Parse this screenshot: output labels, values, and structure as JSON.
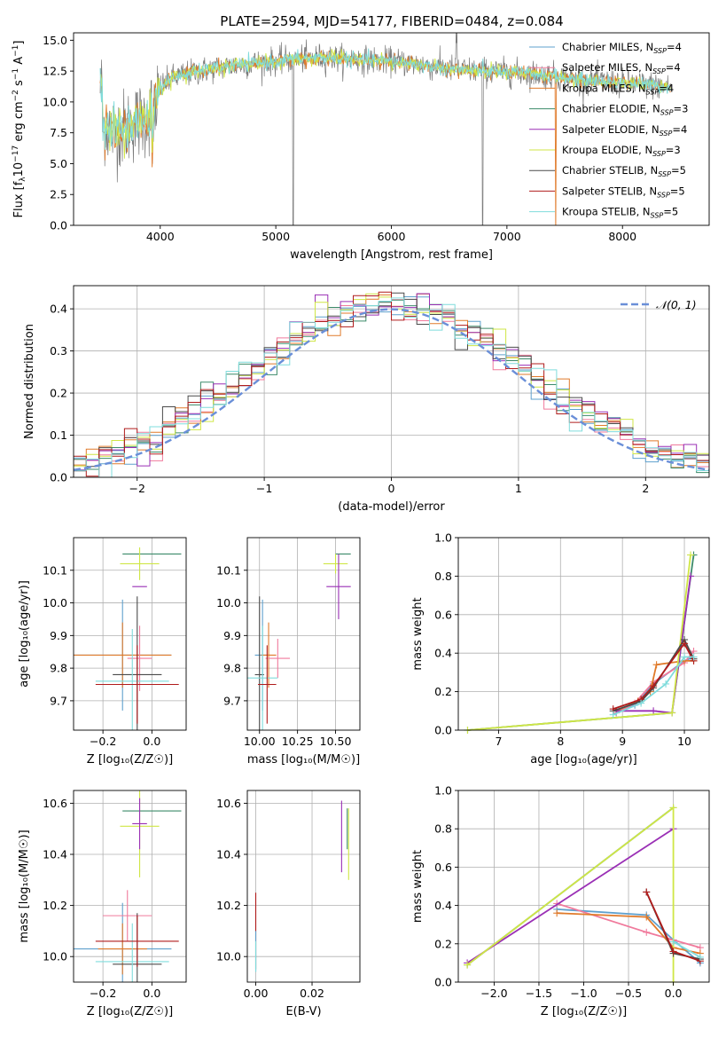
{
  "figure": {
    "title": "PLATE=2594, MJD=54177, FIBERID=0484, z=0.084"
  },
  "series_styles": [
    {
      "name": "Chabrier MILES",
      "nssp": "4",
      "color": "#5fa0cd"
    },
    {
      "name": "Salpeter MILES",
      "nssp": "4",
      "color": "#f07a9c"
    },
    {
      "name": "Kroupa MILES",
      "nssp": "4",
      "color": "#e07a2a"
    },
    {
      "name": "Chabrier ELODIE",
      "nssp": "3",
      "color": "#3c8b6a"
    },
    {
      "name": "Salpeter ELODIE",
      "nssp": "4",
      "color": "#9a2fb5"
    },
    {
      "name": "Kroupa ELODIE",
      "nssp": "3",
      "color": "#cfe645"
    },
    {
      "name": "Chabrier STELIB",
      "nssp": "5",
      "color": "#4a4a4a"
    },
    {
      "name": "Salpeter STELIB",
      "nssp": "5",
      "color": "#b01c1c"
    },
    {
      "name": "Kroupa STELIB",
      "nssp": "5",
      "color": "#7fdcdc"
    }
  ],
  "chart_data": [
    {
      "id": "spectrum",
      "type": "line",
      "xlabel": "wavelength [Angstrom, rest frame]",
      "ylabel_main": "Flux [f",
      "ylabel_sub": "λ",
      "ylabel_rest": "10",
      "ylabel_exp": "−17",
      "ylabel_tail": " erg cm",
      "ylabel_exp2": "−2",
      "ylabel_tail2": " s",
      "ylabel_exp3": "−1",
      "ylabel_tail3": " A",
      "ylabel_exp4": "−1",
      "ylabel_end": "]",
      "xlim": [
        3250,
        8750
      ],
      "ylim": [
        0,
        15.6
      ],
      "xticks": [
        4000,
        5000,
        6000,
        7000,
        8000
      ],
      "yticks": [
        0.0,
        2.5,
        5.0,
        7.5,
        10.0,
        12.5,
        15.0
      ],
      "ytick_labels": [
        "0.0",
        "2.5",
        "5.0",
        "7.5",
        "10.0",
        "12.5",
        "15.0"
      ],
      "grid": false,
      "legend_position": "upper right",
      "legend_nssp_prefix": "N",
      "legend_nssp_sub": "SSP",
      "continuum": {
        "x": [
          3500,
          3600,
          3700,
          3800,
          3900,
          4000,
          4100,
          4200,
          4300,
          4400,
          4600,
          4800,
          5000,
          5200,
          5400,
          5600,
          5800,
          6000,
          6200,
          6400,
          6600,
          6800,
          7000,
          7200,
          7400,
          7600,
          7800,
          8000,
          8200,
          8400
        ],
        "y": [
          8.2,
          7.6,
          7.9,
          8.4,
          8.8,
          11.2,
          11.9,
          12.2,
          12.4,
          12.6,
          12.9,
          13.1,
          13.3,
          13.5,
          13.6,
          13.5,
          13.4,
          13.3,
          13.1,
          12.8,
          12.6,
          12.5,
          12.4,
          12.3,
          12.1,
          11.8,
          11.7,
          11.5,
          11.4,
          11.2
        ]
      }
    },
    {
      "id": "residuals",
      "type": "histogram",
      "xlabel": "(data-model)/error",
      "ylabel": "Normed distribution",
      "xlim": [
        -2.5,
        2.5
      ],
      "ylim": [
        0,
        0.455
      ],
      "xticks": [
        -2,
        -1,
        0,
        1,
        2
      ],
      "xtick_labels": [
        "−2",
        "−1",
        "0",
        "1",
        "2"
      ],
      "yticks": [
        0.0,
        0.1,
        0.2,
        0.3,
        0.4
      ],
      "ytick_labels": [
        "0.0",
        "0.1",
        "0.2",
        "0.3",
        "0.4"
      ],
      "grid": true,
      "legend_label": "𝒩(0, 1)",
      "legend_position": "upper right",
      "bin_width": 0.1
    },
    {
      "id": "age_vs_Z",
      "type": "scatter",
      "xlabel": "Z [log₁₀(Z/Z☉)]",
      "ylabel": "age  [log₁₀(age/yr)]",
      "xlim": [
        -0.32,
        0.14
      ],
      "ylim": [
        9.61,
        10.2
      ],
      "xticks": [
        -0.2,
        0.0
      ],
      "xtick_labels": [
        "−0.2",
        "0.0"
      ],
      "yticks": [
        9.7,
        9.8,
        9.9,
        10.0,
        10.1
      ],
      "ytick_labels": [
        "9.7",
        "9.8",
        "9.9",
        "10.0",
        "10.1"
      ],
      "grid": true
    },
    {
      "id": "age_vs_mass",
      "type": "scatter",
      "xlabel": "mass [log₁₀(M/M☉)]",
      "xlim": [
        9.92,
        10.66
      ],
      "ylim": [
        9.61,
        10.2
      ],
      "xticks": [
        10.0,
        10.25,
        10.5
      ],
      "xtick_labels": [
        "10.00",
        "10.25",
        "10.50"
      ],
      "yticks": [
        9.7,
        9.8,
        9.9,
        10.0,
        10.1
      ],
      "ytick_labels": [
        "9.7",
        "9.8",
        "9.9",
        "10.0",
        "10.1"
      ],
      "grid": true
    },
    {
      "id": "massweight_vs_age",
      "type": "line",
      "xlabel": "age  [log₁₀(age/yr)]",
      "ylabel": "mass weight",
      "xlim": [
        6.35,
        10.4
      ],
      "ylim": [
        0,
        1.0
      ],
      "xticks": [
        7,
        8,
        9,
        10
      ],
      "xtick_labels": [
        "7",
        "8",
        "9",
        "10"
      ],
      "yticks": [
        0.0,
        0.2,
        0.4,
        0.6,
        0.8,
        1.0
      ],
      "ytick_labels": [
        "0.0",
        "0.2",
        "0.4",
        "0.6",
        "0.8",
        "1.0"
      ],
      "grid": true,
      "series": [
        {
          "style": 0,
          "x": [
            8.9,
            9.2,
            9.5,
            10.0,
            10.15
          ],
          "y": [
            0.09,
            0.13,
            0.24,
            0.36,
            0.38
          ]
        },
        {
          "style": 1,
          "x": [
            8.9,
            9.2,
            9.5,
            10.0,
            10.15
          ],
          "y": [
            0.09,
            0.14,
            0.25,
            0.35,
            0.41
          ]
        },
        {
          "style": 2,
          "x": [
            8.9,
            9.25,
            9.45,
            9.55,
            10.0,
            10.15
          ],
          "y": [
            0.1,
            0.15,
            0.2,
            0.34,
            0.36,
            0.36
          ]
        },
        {
          "style": 3,
          "x": [
            6.5,
            9.8,
            10.15
          ],
          "y": [
            0.0,
            0.09,
            0.91
          ]
        },
        {
          "style": 4,
          "x": [
            8.9,
            9.5,
            9.8,
            10.1
          ],
          "y": [
            0.1,
            0.1,
            0.09,
            0.8
          ]
        },
        {
          "style": 5,
          "x": [
            6.5,
            9.8,
            10.1
          ],
          "y": [
            0.0,
            0.09,
            0.91
          ]
        },
        {
          "style": 6,
          "x": [
            8.85,
            9.3,
            9.5,
            10.0,
            10.15
          ],
          "y": [
            0.1,
            0.15,
            0.22,
            0.47,
            0.37
          ]
        },
        {
          "style": 7,
          "x": [
            8.85,
            9.3,
            9.5,
            10.0,
            10.15
          ],
          "y": [
            0.11,
            0.16,
            0.23,
            0.45,
            0.36
          ]
        },
        {
          "style": 8,
          "x": [
            8.85,
            9.3,
            9.7,
            10.0,
            10.15
          ],
          "y": [
            0.08,
            0.14,
            0.24,
            0.38,
            0.38
          ]
        }
      ]
    },
    {
      "id": "mass_vs_Z",
      "type": "scatter",
      "xlabel": "Z [log₁₀(Z/Z☉)]",
      "ylabel": "mass [log₁₀(M/M☉)]",
      "xlim": [
        -0.32,
        0.14
      ],
      "ylim": [
        9.9,
        10.65
      ],
      "xticks": [
        -0.2,
        0.0
      ],
      "xtick_labels": [
        "−0.2",
        "0.0"
      ],
      "yticks": [
        10.0,
        10.2,
        10.4,
        10.6
      ],
      "ytick_labels": [
        "10.0",
        "10.2",
        "10.4",
        "10.6"
      ],
      "grid": true
    },
    {
      "id": "mass_vs_ebv",
      "type": "scatter",
      "xlabel": "E(B-V)",
      "xlim": [
        -0.003,
        0.037
      ],
      "ylim": [
        9.9,
        10.65
      ],
      "xticks": [
        0.0,
        0.02
      ],
      "xtick_labels": [
        "0.00",
        "0.02"
      ],
      "yticks": [
        10.0,
        10.2,
        10.4,
        10.6
      ],
      "ytick_labels": [
        "10.0",
        "10.2",
        "10.4",
        "10.6"
      ],
      "grid": true
    },
    {
      "id": "massweight_vs_Z",
      "type": "line",
      "xlabel": "Z [log₁₀(Z/Z☉)]",
      "ylabel": "mass weight",
      "xlim": [
        -2.4,
        0.4
      ],
      "ylim": [
        0,
        1.0
      ],
      "xticks": [
        -2.0,
        -1.5,
        -1.0,
        -0.5,
        0.0
      ],
      "xtick_labels": [
        "−2.0",
        "−1.5",
        "−1.0",
        "−0.5",
        "0.0"
      ],
      "yticks": [
        0.0,
        0.2,
        0.4,
        0.6,
        0.8,
        1.0
      ],
      "ytick_labels": [
        "0.0",
        "0.2",
        "0.4",
        "0.6",
        "0.8",
        "1.0"
      ],
      "grid": true,
      "series": [
        {
          "style": 0,
          "x": [
            -1.3,
            -0.3,
            0.0,
            0.3
          ],
          "y": [
            0.38,
            0.35,
            0.22,
            0.1
          ]
        },
        {
          "style": 1,
          "x": [
            -1.3,
            -0.3,
            0.0,
            0.3
          ],
          "y": [
            0.41,
            0.26,
            0.22,
            0.18
          ]
        },
        {
          "style": 2,
          "x": [
            -1.3,
            -0.3,
            0.0,
            0.3
          ],
          "y": [
            0.36,
            0.34,
            0.18,
            0.15
          ]
        },
        {
          "style": 3,
          "x": [
            -2.3,
            0.0
          ],
          "y": [
            0.09,
            0.91
          ]
        },
        {
          "style": 4,
          "x": [
            -2.3,
            0.0
          ],
          "y": [
            0.1,
            0.8
          ]
        },
        {
          "style": 5,
          "x": [
            -2.3,
            0.0,
            0.0
          ],
          "y": [
            0.09,
            0.91,
            0.0
          ]
        },
        {
          "style": 6,
          "x": [
            -0.3,
            0.0,
            0.3
          ],
          "y": [
            0.47,
            0.15,
            0.12
          ]
        },
        {
          "style": 7,
          "x": [
            -0.3,
            0.0,
            0.3
          ],
          "y": [
            0.47,
            0.16,
            0.11
          ]
        },
        {
          "style": 8,
          "x": [
            0.0,
            0.3
          ],
          "y": [
            0.21,
            0.13
          ]
        }
      ]
    }
  ]
}
